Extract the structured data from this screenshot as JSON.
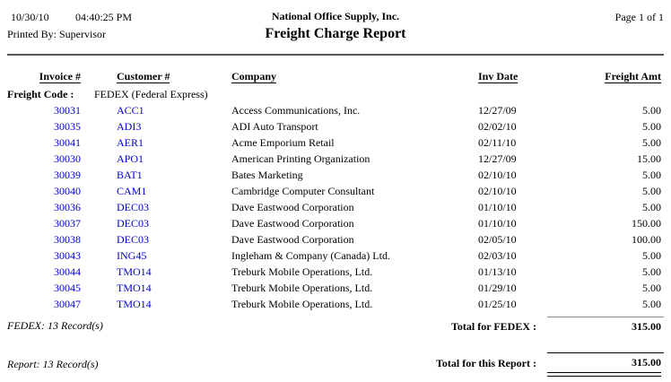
{
  "page": {
    "date": "10/30/10",
    "time": "04:40:25 PM",
    "printed_by": "Printed By: Supervisor",
    "company_name": "National Office Supply, Inc.",
    "report_title": "Freight Charge Report",
    "page_indicator": "Page 1 of 1"
  },
  "table": {
    "headers": {
      "invoice": "Invoice #",
      "customer": "Customer #",
      "company": "Company",
      "inv_date": "Inv Date",
      "freight_amt": "Freight Amt"
    },
    "freight_code_label": "Freight Code :",
    "freight_code_value": "FEDEX (Federal Express)",
    "rows": [
      {
        "invoice": "30031",
        "customer": "ACC1",
        "company": "Access Communications, Inc.",
        "inv_date": "12/27/09",
        "freight_amt": "5.00"
      },
      {
        "invoice": "30035",
        "customer": "ADI3",
        "company": "ADI Auto Transport",
        "inv_date": "02/02/10",
        "freight_amt": "5.00"
      },
      {
        "invoice": "30041",
        "customer": "AER1",
        "company": "Acme Emporium Retail",
        "inv_date": "02/11/10",
        "freight_amt": "5.00"
      },
      {
        "invoice": "30030",
        "customer": "APO1",
        "company": "American Printing Organization",
        "inv_date": "12/27/09",
        "freight_amt": "15.00"
      },
      {
        "invoice": "30039",
        "customer": "BAT1",
        "company": "Bates Marketing",
        "inv_date": "02/10/10",
        "freight_amt": "5.00"
      },
      {
        "invoice": "30040",
        "customer": "CAM1",
        "company": "Cambridge Computer Consultant",
        "inv_date": "02/10/10",
        "freight_amt": "5.00"
      },
      {
        "invoice": "30036",
        "customer": "DEC03",
        "company": "Dave Eastwood Corporation",
        "inv_date": "01/10/10",
        "freight_amt": "5.00"
      },
      {
        "invoice": "30037",
        "customer": "DEC03",
        "company": "Dave Eastwood Corporation",
        "inv_date": "01/10/10",
        "freight_amt": "150.00"
      },
      {
        "invoice": "30038",
        "customer": "DEC03",
        "company": "Dave Eastwood Corporation",
        "inv_date": "02/05/10",
        "freight_amt": "100.00"
      },
      {
        "invoice": "30043",
        "customer": "ING45",
        "company": "Ingleham & Company (Canada) Ltd.",
        "inv_date": "02/03/10",
        "freight_amt": "5.00"
      },
      {
        "invoice": "30044",
        "customer": "TMO14",
        "company": "Treburk Mobile Operations, Ltd.",
        "inv_date": "01/13/10",
        "freight_amt": "5.00"
      },
      {
        "invoice": "30045",
        "customer": "TMO14",
        "company": "Treburk Mobile Operations, Ltd.",
        "inv_date": "01/29/10",
        "freight_amt": "5.00"
      },
      {
        "invoice": "30047",
        "customer": "TMO14",
        "company": "Treburk Mobile Operations, Ltd.",
        "inv_date": "01/25/10",
        "freight_amt": "5.00"
      }
    ]
  },
  "group_footer": {
    "record_count": "FEDEX: 13 Record(s)",
    "total_label": "Total for FEDEX :",
    "total_value": "315.00"
  },
  "report_footer": {
    "record_count": "Report: 13 Record(s)",
    "total_label": "Total for this Report :",
    "total_value": "315.00"
  },
  "colors": {
    "link_blue": "#0000CC",
    "header_rule": "#565656"
  }
}
